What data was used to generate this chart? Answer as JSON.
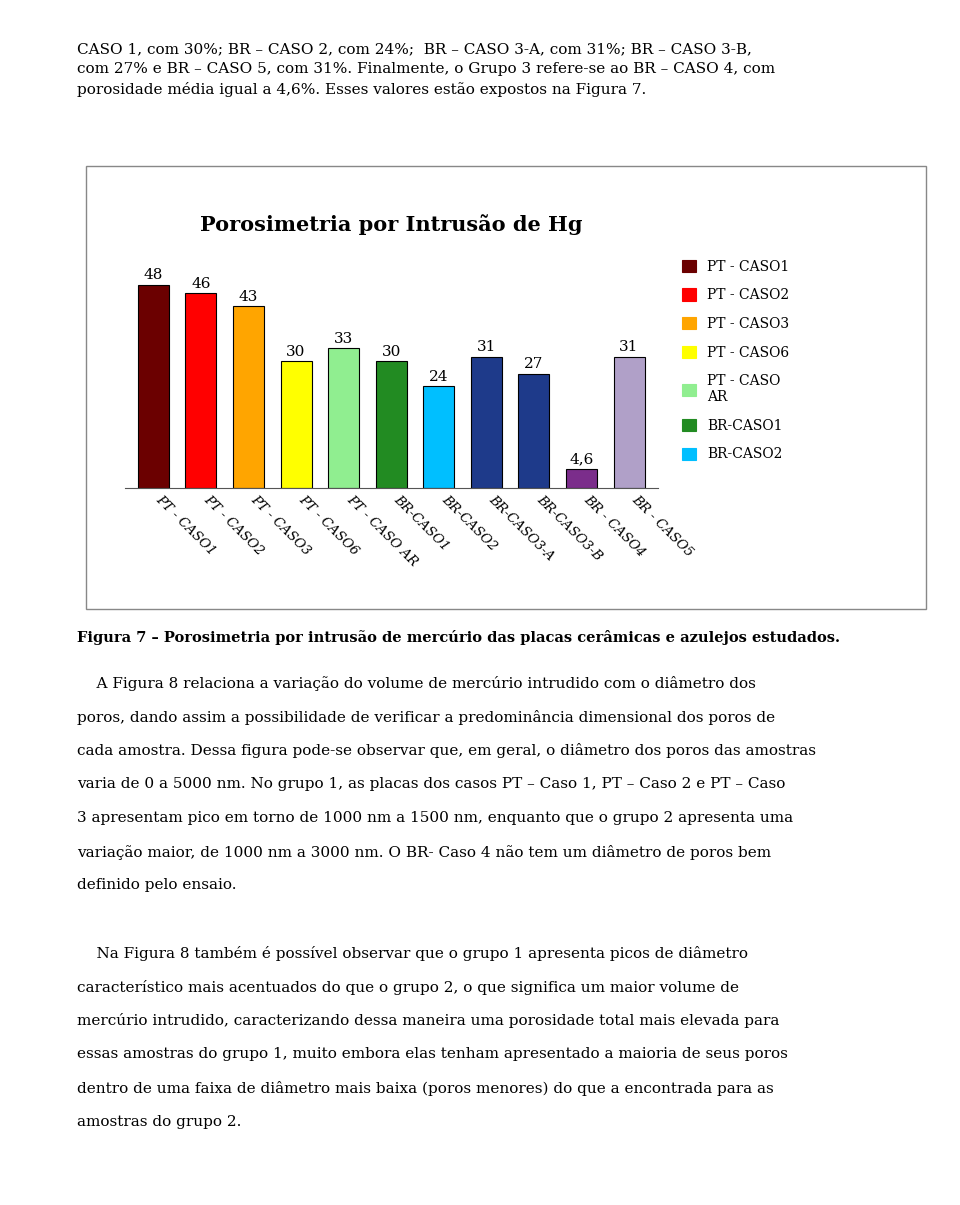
{
  "title": "Porosimetria por Intrusão de Hg",
  "categories": [
    "PT - CASO1",
    "PT - CASO2",
    "PT - CASO3",
    "PT - CASO6",
    "PT - CASO AR",
    "BR-CASO1",
    "BR-CASO2",
    "BR-CASO3-A",
    "BR-CASO3-B",
    "BR - CASO4",
    "BR - CASO5"
  ],
  "values": [
    48,
    46,
    43,
    30,
    33,
    30,
    24,
    31,
    27,
    4.6,
    31
  ],
  "bar_colors": [
    "#6B0000",
    "#FF0000",
    "#FFA500",
    "#FFFF00",
    "#90EE90",
    "#228B22",
    "#00BFFF",
    "#1E3A8A",
    "#1E3A8A",
    "#7B2D8B",
    "#B0A0C8"
  ],
  "value_labels": [
    "48",
    "46",
    "43",
    "30",
    "33",
    "30",
    "24",
    "31",
    "27",
    "4,6",
    "31"
  ],
  "legend_labels": [
    "PT - CASO1",
    "PT - CASO2",
    "PT - CASO3",
    "PT - CASO6",
    "PT - CASO\nAR",
    "BR-CASO1",
    "BR-CASO2"
  ],
  "legend_colors": [
    "#6B0000",
    "#FF0000",
    "#FFA500",
    "#FFFF00",
    "#90EE90",
    "#228B22",
    "#00BFFF"
  ],
  "ylim": [
    0,
    56
  ],
  "title_fontsize": 15,
  "label_fontsize": 11,
  "tick_fontsize": 9.5,
  "legend_fontsize": 10,
  "bar_width": 0.65,
  "figure_width": 9.6,
  "figure_height": 12.05,
  "dpi": 100,
  "background_color": "#FFFFFF",
  "text_above": "CASO 1, com 30%; BR – CASO 2, com 24%;  BR – CASO 3-A, com 31%; BR – CASO 3-B,\ncom 27% e BR – CASO 5, com 31%. Finalmente, o Grupo 3 refere-se ao BR – CASO 4, com\nporosidade média igual a 4,6%. Esses valores estão expostos na Figura 7.",
  "caption": "Figura 7 – Porosimetria por intrusão de mercúrio das placas cerâmicas e azulejos estudados.",
  "text_below_lines": [
    "    A Figura 8 relaciona a variação do volume de mercúrio intrudido com o diâmetro dos",
    "poros, dando assim a possibilidade de verificar a predominância dimensional dos poros de",
    "cada amostra. Dessa figura pode-se observar que, em geral, o diâmetro dos poros das amostras",
    "varia de 0 a 5000 nm. No grupo 1, as placas dos casos PT – Caso 1, PT – Caso 2 e PT – Caso",
    "3 apresentam pico em torno de 1000 nm a 1500 nm, enquanto que o grupo 2 apresenta uma",
    "variação maior, de 1000 nm a 3000 nm. O BR- Caso 4 não tem um diâmetro de poros bem",
    "definido pelo ensaio.",
    "",
    "    Na Figura 8 também é possível observar que o grupo 1 apresenta picos de diâmetro",
    "característico mais acentuados do que o grupo 2, o que significa um maior volume de",
    "mercúrio intrudido, caracterizando dessa maneira uma porosidade total mais elevada para",
    "essas amostras do grupo 1, muito embora elas tenham apresentado a maioria de seus poros",
    "dentro de uma faixa de diâmetro mais baixa (poros menores) do que a encontrada para as",
    "amostras do grupo 2."
  ]
}
